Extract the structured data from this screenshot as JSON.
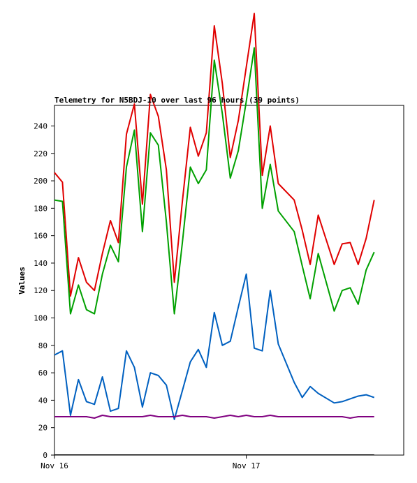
{
  "chart_data": {
    "type": "line",
    "title": "Telemetry for N5BDJ-10 over last 96 hours (39 points)",
    "xlabel": "",
    "ylabel": "Values",
    "ylim": [
      0,
      255
    ],
    "yticks": [
      0,
      20,
      40,
      60,
      80,
      100,
      120,
      140,
      160,
      180,
      200,
      220,
      240
    ],
    "xlim": [
      0,
      43.7
    ],
    "xticks": [
      {
        "x": 0,
        "label": "Nov 16"
      },
      {
        "x": 24,
        "label": "Nov 17"
      }
    ],
    "grid": false,
    "legend": "none",
    "x": [
      0,
      1,
      2,
      3,
      4,
      5,
      6,
      7,
      8,
      9,
      10,
      11,
      12,
      13,
      14,
      15,
      16,
      17,
      18,
      19,
      20,
      21,
      22,
      23,
      24,
      25,
      26,
      27,
      28,
      30,
      31,
      32,
      33,
      35,
      36,
      37,
      38,
      39,
      40
    ],
    "series": [
      {
        "color": "#e00000",
        "values": [
          206,
          199,
          116,
          144,
          126,
          120,
          147,
          171,
          155,
          234,
          256,
          183,
          263,
          247,
          208,
          126,
          185,
          239,
          218,
          235,
          313,
          271,
          217,
          244,
          283,
          322,
          204,
          240,
          198,
          186,
          164,
          139,
          175,
          139,
          154,
          155,
          139,
          158,
          186
        ]
      },
      {
        "color": "#00a000",
        "values": [
          186,
          185,
          103,
          124,
          106,
          103,
          132,
          153,
          141,
          210,
          237,
          163,
          235,
          226,
          170,
          103,
          155,
          210,
          198,
          208,
          288,
          249,
          202,
          222,
          258,
          297,
          180,
          212,
          178,
          163,
          138,
          114,
          147,
          105,
          120,
          122,
          110,
          135,
          148
        ]
      },
      {
        "color": "#0060c0",
        "values": [
          73,
          76,
          29,
          55,
          39,
          37,
          57,
          32,
          34,
          76,
          64,
          35,
          60,
          58,
          51,
          26,
          47,
          68,
          77,
          64,
          104,
          80,
          83,
          108,
          132,
          78,
          76,
          120,
          81,
          53,
          42,
          50,
          45,
          38,
          39,
          41,
          43,
          44,
          42
        ]
      },
      {
        "color": "#800080",
        "values": [
          28,
          28,
          28,
          28,
          28,
          27,
          29,
          28,
          28,
          28,
          28,
          28,
          29,
          28,
          28,
          28,
          29,
          28,
          28,
          28,
          27,
          28,
          29,
          28,
          29,
          28,
          28,
          29,
          28,
          28,
          28,
          28,
          28,
          28,
          28,
          27,
          28,
          28,
          28
        ]
      },
      {
        "color": "#000000",
        "values": [
          0,
          0,
          0,
          0,
          0,
          0,
          0,
          0,
          0,
          0,
          0,
          0,
          0,
          0,
          0,
          0,
          0,
          0,
          0,
          0,
          0,
          0,
          0,
          0,
          0,
          0,
          0,
          0,
          0,
          0,
          0,
          0,
          0,
          0,
          0,
          0,
          0,
          0,
          0
        ]
      }
    ]
  }
}
